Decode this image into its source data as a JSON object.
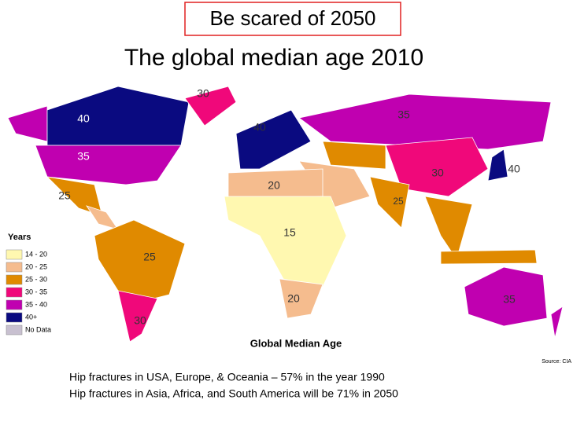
{
  "banner": "Be scared of 2050",
  "title": "The global median age 2010",
  "legend": {
    "title": "Years",
    "items": [
      {
        "label": "14 - 20",
        "color": "#fff8b0"
      },
      {
        "label": "20 - 25",
        "color": "#f5bc8e"
      },
      {
        "label": "25 - 30",
        "color": "#e08a00"
      },
      {
        "label": "30 - 35",
        "color": "#f0087a"
      },
      {
        "label": "35 - 40",
        "color": "#c000b0"
      },
      {
        "label": "40+",
        "color": "#0a0a80"
      },
      {
        "label": "No Data",
        "color": "#c8c0d0"
      }
    ]
  },
  "map_labels": [
    "30",
    "35",
    "40",
    "40",
    "35",
    "30",
    "40",
    "20",
    "25",
    "25",
    "15",
    "25",
    "20",
    "35",
    "30"
  ],
  "map_caption": "Global Median Age",
  "source": "Source: CIA",
  "footer": [
    "Hip fractures in USA, Europe, & Oceania – 57% in the year 1990",
    "Hip fractures in Asia, Africa, and South America will be 71% in 2050"
  ]
}
